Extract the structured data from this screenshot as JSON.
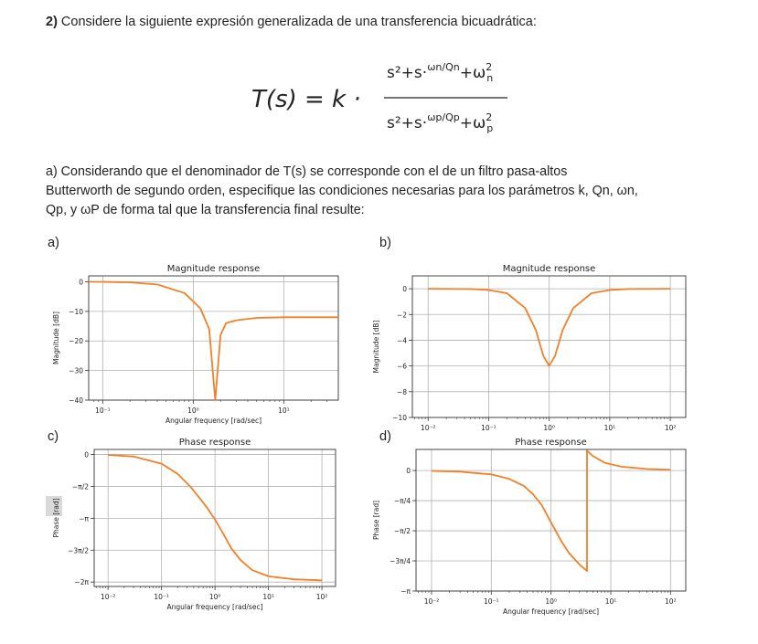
{
  "question": {
    "number": "2)",
    "text": " Considere la siguiente expresión generalizada de una transferencia bicuadrática:"
  },
  "formula": {
    "lhs": "T(s) = k ·",
    "numerator": "s²+s·ωn/Qn+ωn²",
    "denominator": "s²+s·ωp/Qp+ωp²"
  },
  "part_a": {
    "line1": "a) Considerando que el denominador de T(s) se corresponde con el de un filtro pasa-altos",
    "line2": "Butterworth de segundo orden, especifique las condiciones necesarias para los parámetros k, Qn, ωn,",
    "line3": "Qp, y ωP de forma tal que la transferencia final resulte:"
  },
  "panel_labels": {
    "a": "a)",
    "b": "b)",
    "c": "c)",
    "d": "d)"
  },
  "colors": {
    "curve": "#f0812a",
    "grid": "#b0b0b0"
  },
  "chart_data": [
    {
      "id": "a",
      "type": "line",
      "title": "Magnitude response",
      "xlabel": "Angular frequency [rad/sec]",
      "ylabel": "Magnitude [dB]",
      "xscale": "log",
      "xlim": [
        0.07,
        40
      ],
      "ylim": [
        -40,
        2
      ],
      "xticks": [
        0.1,
        1,
        10
      ],
      "xticklabels": [
        "10⁻¹",
        "10⁰",
        "10¹"
      ],
      "yticks": [
        0,
        -10,
        -20,
        -30,
        -40
      ],
      "yticklabels": [
        "0",
        "−10",
        "−20",
        "−30",
        "−40"
      ],
      "series": [
        {
          "x": [
            0.07,
            0.1,
            0.2,
            0.4,
            0.8,
            1.2,
            1.5,
            1.75,
            2.0,
            2.3,
            3,
            5,
            10,
            40
          ],
          "y": [
            0,
            0,
            -0.2,
            -0.9,
            -3.8,
            -9,
            -16,
            -40,
            -18,
            -14,
            -13,
            -12.2,
            -12.0,
            -12.0
          ]
        }
      ],
      "grid": true
    },
    {
      "id": "b",
      "type": "line",
      "title": "Magnitude response",
      "xlabel": "Angular frequency [rad/sec]",
      "ylabel": "Magnitude [dB]",
      "xscale": "log",
      "xlim": [
        0.0055,
        180
      ],
      "ylim": [
        -10,
        1
      ],
      "xticks": [
        0.01,
        0.1,
        1,
        10,
        100
      ],
      "xticklabels": [
        "10⁻²",
        "10⁻¹",
        "10⁰",
        "10¹",
        "10²"
      ],
      "yticks": [
        0,
        -2,
        -4,
        -6,
        -8,
        -10
      ],
      "yticklabels": [
        "0",
        "−2",
        "−4",
        "−6",
        "−8",
        "−10"
      ],
      "series": [
        {
          "x": [
            0.01,
            0.05,
            0.1,
            0.2,
            0.4,
            0.6,
            0.8,
            1,
            1.25,
            1.67,
            2.5,
            5,
            10,
            20,
            100
          ],
          "y": [
            0,
            -0.02,
            -0.1,
            -0.35,
            -1.5,
            -3.2,
            -5.2,
            -6,
            -5.2,
            -3.2,
            -1.5,
            -0.35,
            -0.1,
            -0.02,
            0
          ]
        }
      ],
      "grid": true
    },
    {
      "id": "c",
      "type": "line",
      "title": "Phase response",
      "xlabel": "Angular frequency [rad/sec]",
      "ylabel": "Phase [rad]",
      "xscale": "log",
      "xlim": [
        0.0055,
        180
      ],
      "ylim": [
        -6.5,
        0.25
      ],
      "xticks": [
        0.01,
        0.1,
        1,
        10,
        100
      ],
      "xticklabels": [
        "10⁻²",
        "10⁻¹",
        "10⁰",
        "10¹",
        "10²"
      ],
      "yticks": [
        0,
        -1.5708,
        -3.1416,
        -4.7124,
        -6.2832
      ],
      "yticklabels": [
        "0",
        "−π/2",
        "−π",
        "−3π/2",
        "−2π"
      ],
      "series": [
        {
          "x": [
            0.01,
            0.03,
            0.1,
            0.2,
            0.35,
            0.5,
            0.7,
            1,
            1.5,
            2,
            3,
            5,
            10,
            30,
            100
          ],
          "y": [
            -0.02,
            -0.1,
            -0.45,
            -0.95,
            -1.6,
            -2.1,
            -2.6,
            -3.2,
            -4.0,
            -4.6,
            -5.2,
            -5.7,
            -6.0,
            -6.15,
            -6.2
          ]
        }
      ],
      "grid": true
    },
    {
      "id": "d",
      "type": "line",
      "title": "Phase response",
      "xlabel": "Angular frequency [rad/sec]",
      "ylabel": "Phase [rad]",
      "xscale": "log",
      "xlim": [
        0.0055,
        180
      ],
      "ylim": [
        -3.1416,
        0.55
      ],
      "xticks": [
        0.01,
        0.1,
        1,
        10,
        100
      ],
      "xticklabels": [
        "10⁻²",
        "10⁻¹",
        "10⁰",
        "10¹",
        "10²"
      ],
      "yticks": [
        0,
        -0.7854,
        -1.5708,
        -2.3562,
        -3.1416
      ],
      "yticklabels": [
        "0",
        "−π/4",
        "−π/2",
        "−3π/4",
        "−π"
      ],
      "series": [
        {
          "x": [
            0.01,
            0.03,
            0.1,
            0.2,
            0.35,
            0.5,
            0.7,
            1,
            1.5,
            2,
            3,
            4,
            4,
            5,
            8,
            15,
            40,
            100
          ],
          "y": [
            -0.01,
            -0.03,
            -0.1,
            -0.22,
            -0.4,
            -0.62,
            -0.9,
            -1.35,
            -1.85,
            -2.15,
            -2.45,
            -2.62,
            0.52,
            0.38,
            0.2,
            0.1,
            0.04,
            0.02
          ]
        }
      ],
      "grid": true
    }
  ]
}
